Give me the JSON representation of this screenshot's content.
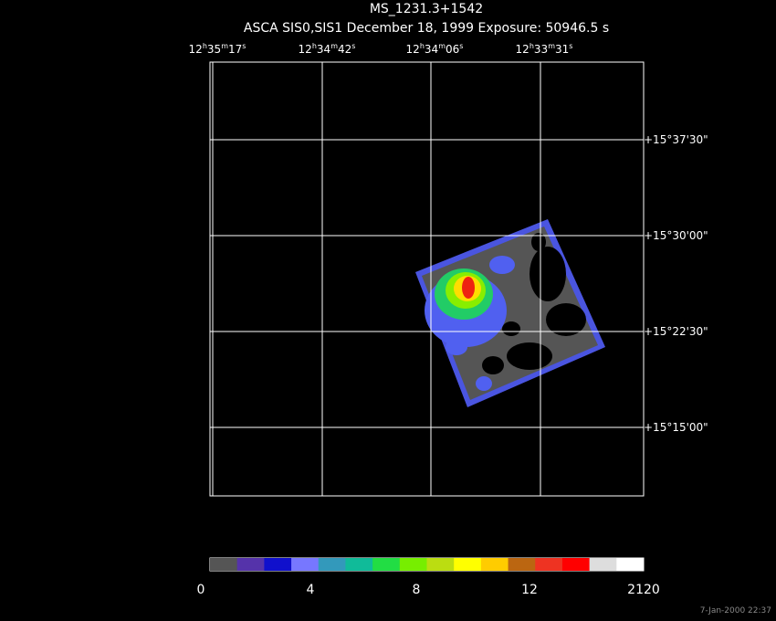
{
  "header": {
    "title": "MS_1231.3+1542",
    "subtitle": "ASCA SIS0,SIS1 December 18, 1999 Exposure: 50946.5 s"
  },
  "ra_labels": [
    [
      "12",
      "h",
      "35",
      "m",
      "17",
      "s"
    ],
    [
      "12",
      "h",
      "34",
      "m",
      "42",
      "s"
    ],
    [
      "12",
      "h",
      "34",
      "m",
      "06",
      "s"
    ],
    [
      "12",
      "h",
      "33",
      "m",
      "31",
      "s"
    ]
  ],
  "dec_labels": [
    "+15°37'30\"",
    "+15°30'00\"",
    "+15°22'30\"",
    "+15°15'00\""
  ],
  "colorbar": {
    "colors": [
      "#555555",
      "#5533aa",
      "#1010cc",
      "#7777ff",
      "#3399bb",
      "#10bb99",
      "#22dd44",
      "#77ee00",
      "#bbdd11",
      "#ffff00",
      "#ffcc00",
      "#bb6611",
      "#ee3322",
      "#ff0000",
      "#dddddd",
      "#ffffff"
    ],
    "labels": [
      "0",
      "4",
      "8",
      "12",
      "2120"
    ]
  },
  "timestamp": "7-Jan-2000 22:37"
}
